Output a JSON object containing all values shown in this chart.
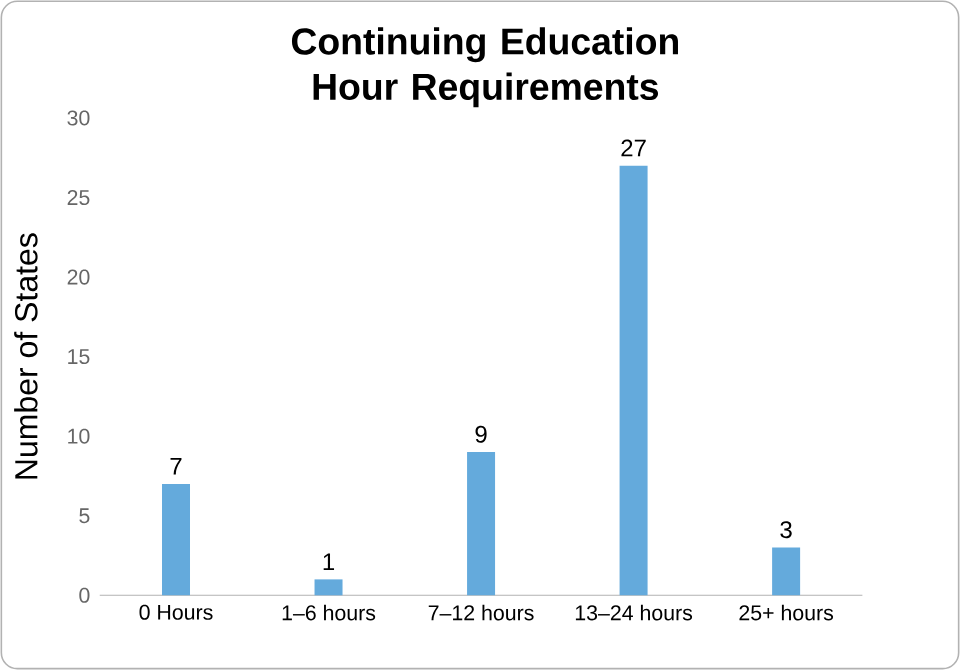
{
  "chart_data": {
    "type": "bar",
    "title": "Continuing Education Hour Requirements",
    "ylabel": "Number of States",
    "categories": [
      "0 Hours",
      "1–6 hours",
      "7–12 hours",
      "13–24 hours",
      "25+ hours"
    ],
    "values": [
      7,
      1,
      9,
      27,
      3
    ],
    "color": "#64aadc",
    "ylim": [
      0,
      30
    ],
    "yticks": [
      0,
      5,
      10,
      15,
      20,
      25,
      30
    ],
    "data_labels": true
  }
}
